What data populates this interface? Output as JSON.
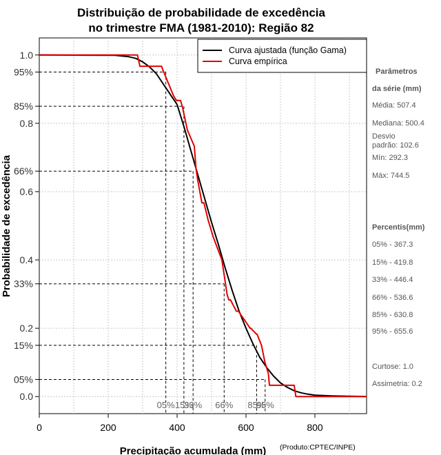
{
  "chart_data": {
    "type": "line",
    "title_line1": "Distribuição de probabilidade de excedência",
    "title_line2": "no trimestre FMA (1981-2010): Região 82",
    "xlabel": "Precipitação acumulada (mm)",
    "ylabel": "Probabilidade de excedência",
    "xlim": [
      0,
      950
    ],
    "ylim": [
      -0.05,
      1.05
    ],
    "x_ticks": [
      0,
      200,
      400,
      600,
      800
    ],
    "x_tick_labels": [
      "0",
      "200",
      "400",
      "600",
      "800"
    ],
    "y_ticks": [
      {
        "value": 1.0,
        "label": "1.0"
      },
      {
        "value": 0.95,
        "label": "95%"
      },
      {
        "value": 0.85,
        "label": "85%"
      },
      {
        "value": 0.8,
        "label": "0.8"
      },
      {
        "value": 0.66,
        "label": "66%"
      },
      {
        "value": 0.6,
        "label": "0.6"
      },
      {
        "value": 0.4,
        "label": "0.4"
      },
      {
        "value": 0.33,
        "label": "33%"
      },
      {
        "value": 0.2,
        "label": "0.2"
      },
      {
        "value": 0.15,
        "label": "15%"
      },
      {
        "value": 0.05,
        "label": "05%"
      },
      {
        "value": 0.0,
        "label": "0.0"
      }
    ],
    "grid_x": [
      100,
      200,
      300,
      400,
      500,
      600,
      700,
      800,
      900
    ],
    "grid_y": [
      0.0,
      0.2,
      0.4,
      0.6,
      0.8,
      1.0
    ],
    "legend": [
      {
        "label": "Curva ajustada (função Gama)",
        "color": "#000000"
      },
      {
        "label": "Curva empírica",
        "color": "#e00000"
      }
    ],
    "legend_position": "top-right",
    "series": [
      {
        "name": "Curva ajustada (função Gama)",
        "color": "#000000",
        "x": [
          0,
          220,
          260,
          280,
          300,
          320,
          340,
          360,
          380,
          400,
          420,
          440,
          460,
          480,
          500,
          520,
          540,
          560,
          580,
          600,
          620,
          640,
          660,
          680,
          700,
          720,
          740,
          760,
          780,
          800,
          850,
          900,
          950
        ],
        "y": [
          1.0,
          0.999,
          0.995,
          0.99,
          0.98,
          0.965,
          0.945,
          0.915,
          0.885,
          0.855,
          0.79,
          0.72,
          0.65,
          0.58,
          0.51,
          0.445,
          0.375,
          0.31,
          0.25,
          0.2,
          0.155,
          0.115,
          0.085,
          0.06,
          0.04,
          0.027,
          0.017,
          0.011,
          0.007,
          0.004,
          0.002,
          0.001,
          0.0
        ]
      },
      {
        "name": "Curva empírica",
        "color": "#e00000",
        "x": [
          0,
          285,
          292,
          355,
          358,
          390,
          398,
          410,
          415,
          430,
          450,
          455,
          460,
          472,
          478,
          490,
          505,
          530,
          535,
          545,
          550,
          555,
          572,
          578,
          612,
          614,
          630,
          632,
          645,
          655,
          665,
          668,
          700,
          740,
          744.5,
          950
        ],
        "y": [
          1.0,
          1.0,
          0.967,
          0.967,
          0.958,
          0.88,
          0.867,
          0.867,
          0.85,
          0.78,
          0.733,
          0.667,
          0.633,
          0.567,
          0.567,
          0.517,
          0.467,
          0.4,
          0.367,
          0.3,
          0.283,
          0.283,
          0.25,
          0.25,
          0.2,
          0.2,
          0.183,
          0.183,
          0.15,
          0.1,
          0.067,
          0.033,
          0.033,
          0.033,
          0.0,
          0.0
        ]
      }
    ],
    "percentiles": [
      {
        "label": "05%",
        "x": 367.3,
        "y": 0.95
      },
      {
        "label": "15%",
        "x": 419.8,
        "y": 0.85
      },
      {
        "label": "33%",
        "x": 446.4,
        "y": 0.66
      },
      {
        "label": "66%",
        "x": 536.6,
        "y": 0.33
      },
      {
        "label": "85%",
        "x": 630.8,
        "y": 0.15
      },
      {
        "label": "95%",
        "x": 655.6,
        "y": 0.05
      }
    ]
  },
  "side_panel": {
    "params_heading_1": "Parâmetros",
    "params_heading_2": "da série (mm)",
    "media": "Média: 507.4",
    "mediana": "Mediana: 500.4",
    "desvio_1": "Desvio",
    "desvio_2": "padrão: 102.6",
    "min": "Mín: 292.3",
    "max": "Máx: 744.5",
    "percentis_heading": "Percentis(mm)",
    "p05": "05% - 367.3",
    "p15": "15% - 419.8",
    "p33": "33% - 446.4",
    "p66": "66% - 536.6",
    "p85": "85% - 630.8",
    "p95": "95% - 655.6",
    "curtose": "Curtose: 1.0",
    "assimetria": "Assimetria: 0.2"
  },
  "credit": "(Produto:CPTEC/INPE)"
}
